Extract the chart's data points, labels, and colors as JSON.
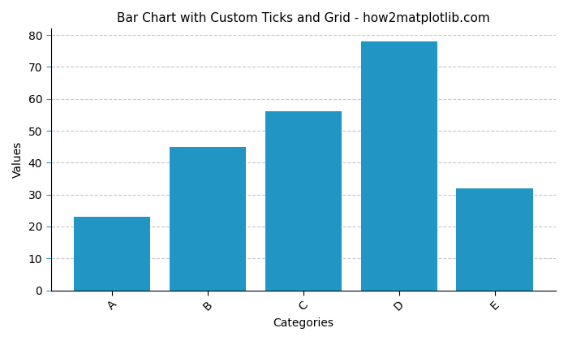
{
  "categories": [
    "A",
    "B",
    "C",
    "D",
    "E"
  ],
  "values": [
    23,
    45,
    56,
    78,
    32
  ],
  "bar_color": "#2196c4",
  "title": "Bar Chart with Custom Ticks and Grid - how2matplotlib.com",
  "xlabel": "Categories",
  "ylabel": "Values",
  "ylim": [
    0,
    82
  ],
  "yticks": [
    0,
    10,
    20,
    30,
    40,
    50,
    60,
    70,
    80
  ],
  "grid_color": "#c8c8c8",
  "grid_linestyle": "--",
  "grid_linewidth": 0.8,
  "xtick_color": "red",
  "ytick_color": "#2196c4",
  "xlabel_rotation": 45,
  "background_color": "#ffffff",
  "title_fontsize": 11
}
